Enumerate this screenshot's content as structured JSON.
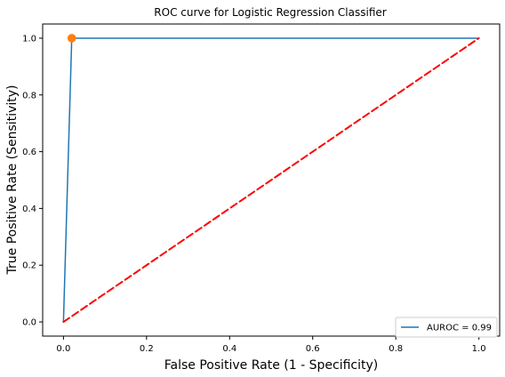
{
  "chart_data": {
    "type": "line",
    "title": "ROC curve for Logistic Regression Classifier",
    "xlabel": "False Positive Rate (1 - Specificity)",
    "ylabel": "True Positive Rate (Sensitivity)",
    "xlim": [
      -0.05,
      1.05
    ],
    "ylim": [
      -0.05,
      1.05
    ],
    "xticks": [
      0.0,
      0.2,
      0.4,
      0.6,
      0.8,
      1.0
    ],
    "yticks": [
      0.0,
      0.2,
      0.4,
      0.6,
      0.8,
      1.0
    ],
    "xtick_labels": [
      "0.0",
      "0.2",
      "0.4",
      "0.6",
      "0.8",
      "1.0"
    ],
    "ytick_labels": [
      "0.0",
      "0.2",
      "0.4",
      "0.6",
      "0.8",
      "1.0"
    ],
    "grid": false,
    "legend_position": "lower-right",
    "series": [
      {
        "name": "AUROC = 0.99",
        "color": "#1f77b4",
        "style": "solid",
        "x": [
          0.0,
          0.02,
          1.0
        ],
        "y": [
          0.0,
          1.0,
          1.0
        ]
      },
      {
        "color": "#ff0000",
        "style": "dashed",
        "x": [
          0.0,
          1.0
        ],
        "y": [
          0.0,
          1.0
        ]
      }
    ],
    "highlight_point": {
      "x": 0.02,
      "y": 1.0,
      "color": "#ff7f0e"
    }
  }
}
